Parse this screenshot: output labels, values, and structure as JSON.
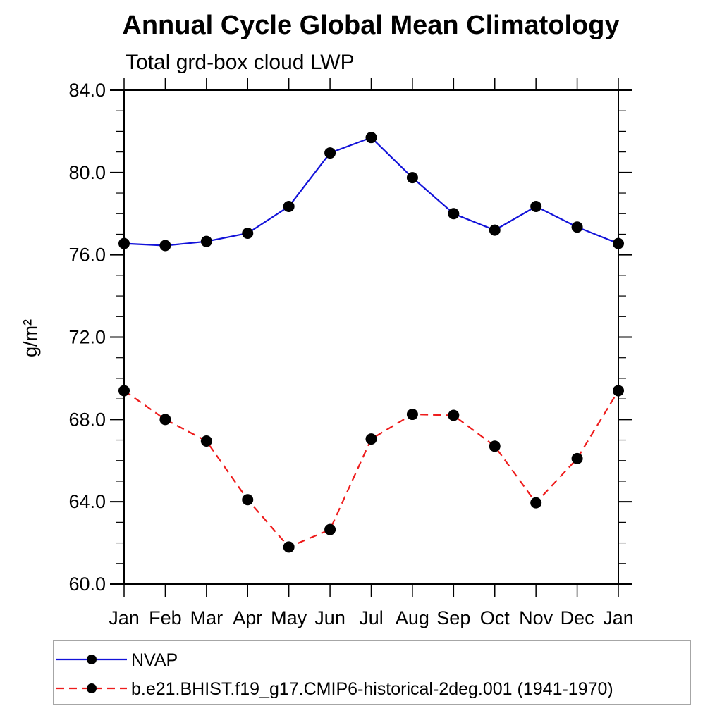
{
  "chart_data": {
    "type": "line",
    "title": "Annual Cycle Global Mean Climatology",
    "subtitle": "Total grd-box cloud LWP",
    "xlabel": "",
    "ylabel": "g/m²",
    "categories": [
      "Jan",
      "Feb",
      "Mar",
      "Apr",
      "May",
      "Jun",
      "Jul",
      "Aug",
      "Sep",
      "Oct",
      "Nov",
      "Dec",
      "Jan"
    ],
    "x_tick_labels": [
      "Jan",
      "Feb",
      "Mar",
      "Apr",
      "May",
      "Jun",
      "Jul",
      "Aug",
      "Sep",
      "Oct",
      "Nov",
      "Dec",
      "Jan"
    ],
    "ylim": [
      60.0,
      84.0
    ],
    "y_major_step": 4,
    "y_minor_step": 1,
    "y_tick_labels": [
      "60.0",
      "64.0",
      "68.0",
      "72.0",
      "76.0",
      "80.0",
      "84.0"
    ],
    "grid": false,
    "legend_position": "bottom-left-box",
    "axis_color": "#000000",
    "legend_border_color": "#888888",
    "series": [
      {
        "name": "NVAP",
        "color": "#1212d9",
        "line_style": "solid",
        "marker": "circle",
        "marker_color": "#000000",
        "values": [
          76.55,
          76.45,
          76.65,
          77.05,
          78.35,
          80.95,
          81.7,
          79.75,
          78.0,
          77.2,
          78.35,
          77.35,
          76.55
        ]
      },
      {
        "name": "b.e21.BHIST.f19_g17.CMIP6-historical-2deg.001 (1941-1970)",
        "color": "#ee1c1c",
        "line_style": "dashed",
        "marker": "circle",
        "marker_color": "#000000",
        "values": [
          69.4,
          68.0,
          66.95,
          64.1,
          61.8,
          62.65,
          67.05,
          68.25,
          68.2,
          66.7,
          63.95,
          66.1,
          69.4
        ]
      }
    ]
  }
}
